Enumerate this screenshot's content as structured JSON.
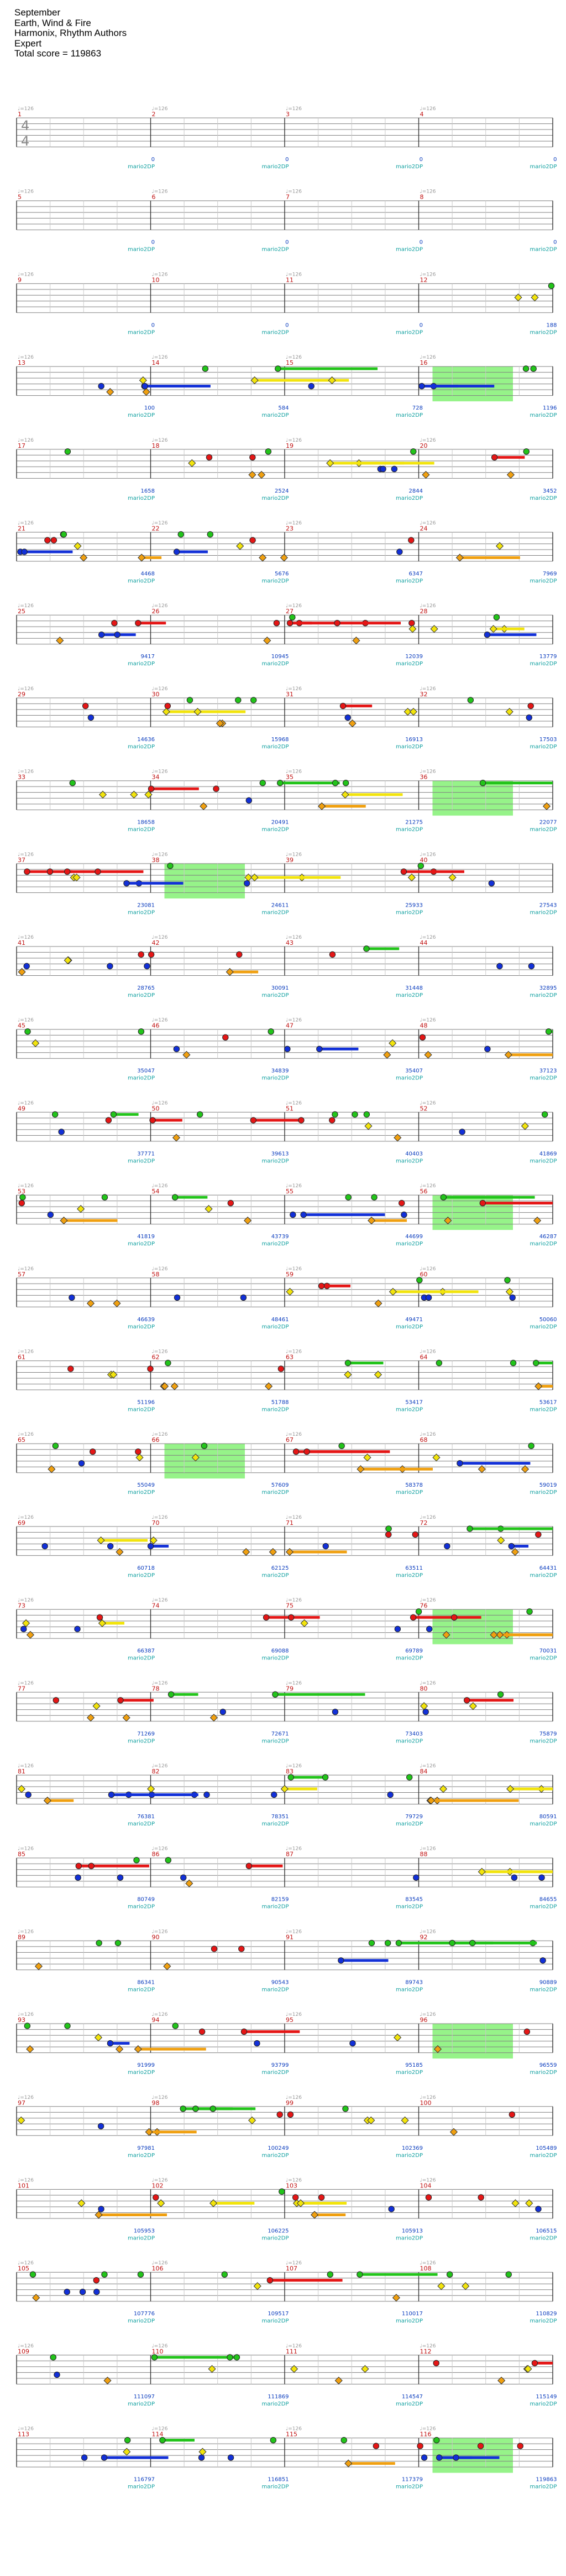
{
  "song": {
    "title": "September",
    "artist": "Earth, Wind & Fire",
    "charter": "Harmonix, Rhythm Authors",
    "difficulty": "Expert",
    "total_score_label": "Total score = 119863"
  },
  "time_signature": {
    "top": "4",
    "bottom": "4"
  },
  "tempo_label": "♩=126",
  "multiplier_label": "mario2DP",
  "colors": {
    "green": "#22c41a",
    "red": "#e51616",
    "yellow": "#f2e40c",
    "blue": "#1230d8",
    "orange": "#f0a010",
    "star_power": "#7cf06c",
    "measure_number": "#c01010",
    "score_text": "#0a3cbe",
    "multiplier_text": "#10a0a0",
    "tempo_text": "#9a9a9a"
  },
  "rows": [
    {
      "measures": [
        "1",
        "2",
        "3",
        "4"
      ],
      "scores": [
        "0",
        "0",
        "0",
        "0"
      ]
    },
    {
      "measures": [
        "5",
        "6",
        "7",
        "8"
      ],
      "scores": [
        "0",
        "0",
        "0",
        "0"
      ]
    },
    {
      "measures": [
        "9",
        "10",
        "11",
        "12"
      ],
      "scores": [
        "0",
        "0",
        "0",
        "188"
      ]
    },
    {
      "measures": [
        "13",
        "14",
        "15",
        "16"
      ],
      "scores": [
        "100",
        "584",
        "728",
        "1196"
      ]
    },
    {
      "measures": [
        "17",
        "18",
        "19",
        "20"
      ],
      "scores": [
        "1658",
        "2524",
        "2844",
        "3452"
      ]
    },
    {
      "measures": [
        "21",
        "22",
        "23",
        "24"
      ],
      "scores": [
        "4468",
        "5676",
        "6347",
        "7969"
      ]
    },
    {
      "measures": [
        "25",
        "26",
        "27",
        "28"
      ],
      "scores": [
        "9417",
        "10945",
        "12039",
        "13779"
      ]
    },
    {
      "measures": [
        "29",
        "30",
        "31",
        "32"
      ],
      "scores": [
        "14636",
        "15968",
        "16913",
        "17503"
      ]
    },
    {
      "measures": [
        "33",
        "34",
        "35",
        "36"
      ],
      "scores": [
        "18658",
        "20491",
        "21275",
        "22077"
      ]
    },
    {
      "measures": [
        "37",
        "38",
        "39",
        "40"
      ],
      "scores": [
        "23081",
        "24611",
        "25933",
        "27543"
      ]
    },
    {
      "measures": [
        "41",
        "42",
        "43",
        "44"
      ],
      "scores": [
        "28765",
        "30091",
        "31448",
        "32895"
      ]
    },
    {
      "measures": [
        "45",
        "46",
        "47",
        "48"
      ],
      "scores": [
        "35047",
        "34839",
        "35407",
        "37123"
      ]
    },
    {
      "measures": [
        "49",
        "50",
        "51",
        "52"
      ],
      "scores": [
        "37771",
        "39613",
        "40403",
        "41869"
      ]
    },
    {
      "measures": [
        "53",
        "54",
        "55",
        "56"
      ],
      "scores": [
        "41819",
        "43739",
        "44699",
        "46287"
      ]
    },
    {
      "measures": [
        "57",
        "58",
        "59",
        "60"
      ],
      "scores": [
        "46639",
        "48461",
        "49471",
        "50060"
      ]
    },
    {
      "measures": [
        "61",
        "62",
        "63",
        "64"
      ],
      "scores": [
        "51196",
        "51788",
        "53417",
        "53617"
      ]
    },
    {
      "measures": [
        "65",
        "66",
        "67",
        "68"
      ],
      "scores": [
        "55049",
        "57609",
        "58378",
        "59019"
      ]
    },
    {
      "measures": [
        "69",
        "70",
        "71",
        "72"
      ],
      "scores": [
        "60718",
        "62125",
        "63511",
        "64431"
      ]
    },
    {
      "measures": [
        "73",
        "74",
        "75",
        "76"
      ],
      "scores": [
        "66387",
        "69088",
        "69789",
        "70031"
      ]
    },
    {
      "measures": [
        "77",
        "78",
        "79",
        "80"
      ],
      "scores": [
        "71269",
        "72671",
        "73403",
        "75879"
      ]
    },
    {
      "measures": [
        "81",
        "82",
        "83",
        "84"
      ],
      "scores": [
        "76381",
        "78351",
        "79729",
        "80591"
      ]
    },
    {
      "measures": [
        "85",
        "86",
        "87",
        "88"
      ],
      "scores": [
        "80749",
        "82159",
        "83545",
        "84655"
      ]
    },
    {
      "measures": [
        "89",
        "90",
        "91",
        "92"
      ],
      "scores": [
        "86341",
        "90543",
        "89743",
        "90889"
      ]
    },
    {
      "measures": [
        "93",
        "94",
        "95",
        "96"
      ],
      "scores": [
        "91999",
        "93799",
        "95185",
        "96559"
      ]
    },
    {
      "measures": [
        "97",
        "98",
        "99",
        "100"
      ],
      "scores": [
        "97981",
        "100249",
        "102369",
        "105489"
      ]
    },
    {
      "measures": [
        "101",
        "102",
        "103",
        "104"
      ],
      "scores": [
        "105953",
        "106225",
        "105913",
        "106515"
      ]
    },
    {
      "measures": [
        "105",
        "106",
        "107",
        "108"
      ],
      "scores": [
        "107776",
        "109517",
        "110017",
        "110829"
      ]
    },
    {
      "measures": [
        "109",
        "110",
        "111",
        "112"
      ],
      "scores": [
        "111097",
        "111869",
        "114547",
        "115149"
      ]
    },
    {
      "measures": [
        "113",
        "114",
        "115",
        "116"
      ],
      "scores": [
        "116797",
        "116851",
        "117379",
        "119863"
      ]
    }
  ]
}
